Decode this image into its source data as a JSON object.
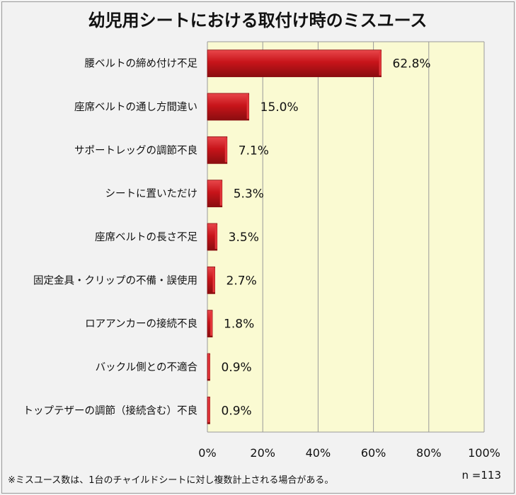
{
  "chart_data": {
    "type": "bar",
    "orientation": "horizontal",
    "title": "幼児用シートにおける取付け時のミスユース",
    "categories": [
      "腰ベルトの締め付け不足",
      "座席ベルトの通し方間違い",
      "サポートレッグの調節不良",
      "シートに置いただけ",
      "座席ベルトの長さ不足",
      "固定金具・クリップの不備・誤使用",
      "ロアアンカーの接続不良",
      "バックル側との不適合",
      "トップテザーの調節（接続含む）不良"
    ],
    "values": [
      62.8,
      15.0,
      7.1,
      5.3,
      3.5,
      2.7,
      1.8,
      0.9,
      0.9
    ],
    "value_labels": [
      "62.8%",
      "15.0%",
      "7.1%",
      "5.3%",
      "3.5%",
      "2.7%",
      "1.8%",
      "0.9%",
      "0.9%"
    ],
    "xlim": [
      0,
      100
    ],
    "xticks": [
      "0%",
      "20%",
      "40%",
      "60%",
      "80%",
      "100%"
    ],
    "grid": true,
    "footnote": "※ミスユース数は、1台のチャイルドシートに対し複数計上される場合がある。",
    "sample_size": "n =113",
    "colors": {
      "bar": "#c8141a",
      "bar_light": "#e8474b",
      "bar_dark": "#8a0d10",
      "plot_bg": "#fafad2",
      "page_bg": "#f2f2f2",
      "grid": "#9a9a9a"
    }
  }
}
